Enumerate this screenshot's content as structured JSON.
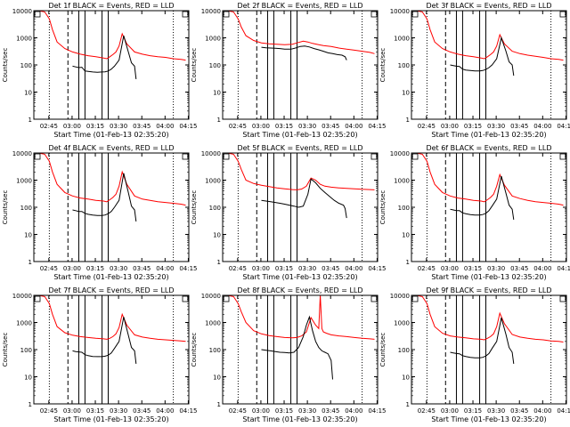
{
  "chart_data": {
    "type": "line",
    "y_scale": "log",
    "ylim": [
      1,
      10000
    ],
    "y_ticks": [
      1,
      10,
      100,
      1000,
      10000
    ],
    "y_tick_labels": [
      "1",
      "10",
      "100",
      "1000",
      "10000"
    ],
    "ylabel": "Counts/sec",
    "xlabel": "Start Time (01-Feb-13 02:35:20)",
    "x_units": "minutes after 02:35:20",
    "xlim": [
      0,
      100
    ],
    "x_ticks": [
      9.67,
      24.67,
      39.67,
      54.67,
      69.67,
      84.67,
      99.67
    ],
    "x_tick_labels": [
      "02:45",
      "03:00",
      "03:15",
      "03:30",
      "03:45",
      "04:00",
      "04:15"
    ],
    "legend": "BLACK = Events, RED = LLD",
    "colors": {
      "events": "#000000",
      "lld": "#ff0000"
    },
    "markers": {
      "dotted": [
        10,
        90
      ],
      "dashed": [
        22
      ],
      "solid": [
        29,
        33,
        44,
        48
      ]
    },
    "panels": [
      {
        "title": "Det 1f  BLACK = Events, RED = LLD",
        "series": [
          {
            "name": "LLD",
            "color": "red",
            "x": [
              0,
              3,
              7,
              10,
              12,
              15,
              20,
              25,
              30,
              35,
              40,
              45,
              47,
              49,
              51,
              53,
              55,
              57,
              60,
              65,
              70,
              75,
              80,
              85,
              90,
              95,
              98
            ],
            "y": [
              10000,
              10000,
              9000,
              5000,
              2000,
              700,
              400,
              300,
              250,
              220,
              200,
              180,
              170,
              200,
              240,
              300,
              500,
              1400,
              600,
              300,
              250,
              220,
              200,
              190,
              170,
              160,
              150
            ]
          },
          {
            "name": "Events",
            "color": "black",
            "x": [
              25,
              27,
              29,
              31,
              33,
              35,
              38,
              41,
              44,
              46,
              48,
              50,
              52,
              55,
              58,
              61,
              63,
              65,
              66
            ],
            "y": [
              90,
              85,
              80,
              82,
              60,
              58,
              55,
              54,
              55,
              56,
              60,
              70,
              90,
              150,
              1200,
              300,
              120,
              90,
              30
            ]
          }
        ]
      },
      {
        "title": "Det 2f  BLACK = Events, RED = LLD",
        "series": [
          {
            "name": "LLD",
            "color": "red",
            "x": [
              0,
              3,
              7,
              10,
              12,
              15,
              20,
              25,
              30,
              35,
              40,
              45,
              48,
              52,
              55,
              58,
              62,
              65,
              70,
              75,
              80,
              85,
              90,
              95,
              98
            ],
            "y": [
              10000,
              10000,
              9000,
              5000,
              2500,
              1200,
              800,
              650,
              600,
              580,
              560,
              580,
              650,
              750,
              700,
              620,
              560,
              520,
              480,
              420,
              380,
              350,
              320,
              290,
              260
            ]
          },
          {
            "name": "Events",
            "color": "black",
            "x": [
              25,
              28,
              31,
              34,
              37,
              40,
              44,
              47,
              50,
              53,
              56,
              59,
              62,
              65,
              68,
              71,
              74,
              77,
              79,
              80
            ],
            "y": [
              450,
              430,
              420,
              410,
              400,
              380,
              380,
              420,
              480,
              500,
              460,
              400,
              360,
              320,
              280,
              260,
              240,
              230,
              200,
              150
            ]
          }
        ]
      },
      {
        "title": "Det 3f  BLACK = Events, RED = LLD",
        "series": [
          {
            "name": "LLD",
            "color": "red",
            "x": [
              0,
              3,
              7,
              10,
              12,
              15,
              20,
              25,
              30,
              35,
              40,
              45,
              47,
              49,
              51,
              53,
              55,
              57,
              60,
              65,
              70,
              75,
              80,
              85,
              90,
              95,
              98
            ],
            "y": [
              10000,
              10000,
              9000,
              5000,
              2000,
              700,
              400,
              300,
              250,
              220,
              200,
              180,
              170,
              200,
              240,
              300,
              500,
              1300,
              600,
              320,
              260,
              230,
              210,
              190,
              170,
              160,
              150
            ]
          },
          {
            "name": "Events",
            "color": "black",
            "x": [
              25,
              27,
              29,
              31,
              33,
              35,
              38,
              41,
              44,
              46,
              48,
              50,
              52,
              55,
              58,
              61,
              63,
              65,
              66
            ],
            "y": [
              100,
              95,
              90,
              88,
              70,
              65,
              62,
              60,
              60,
              62,
              68,
              80,
              100,
              170,
              1000,
              320,
              130,
              100,
              40
            ]
          }
        ]
      },
      {
        "title": "Det 4f  BLACK = Events, RED = LLD",
        "series": [
          {
            "name": "LLD",
            "color": "red",
            "x": [
              0,
              3,
              7,
              10,
              12,
              15,
              20,
              25,
              30,
              35,
              40,
              45,
              47,
              49,
              51,
              53,
              55,
              57,
              60,
              65,
              70,
              75,
              80,
              85,
              90,
              95,
              98
            ],
            "y": [
              10000,
              10000,
              9000,
              5000,
              2000,
              700,
              350,
              260,
              220,
              200,
              180,
              170,
              160,
              190,
              230,
              300,
              600,
              2000,
              700,
              260,
              200,
              180,
              160,
              150,
              140,
              130,
              120
            ]
          },
          {
            "name": "Events",
            "color": "black",
            "x": [
              25,
              27,
              29,
              31,
              33,
              35,
              38,
              41,
              44,
              46,
              48,
              50,
              52,
              55,
              58,
              61,
              63,
              65,
              66
            ],
            "y": [
              80,
              75,
              70,
              70,
              60,
              55,
              52,
              50,
              50,
              52,
              58,
              70,
              100,
              180,
              1800,
              350,
              110,
              80,
              30
            ]
          }
        ]
      },
      {
        "title": "Det 5f  BLACK = Events, RED = LLD",
        "series": [
          {
            "name": "LLD",
            "color": "red",
            "x": [
              0,
              3,
              7,
              10,
              12,
              15,
              20,
              25,
              30,
              35,
              40,
              45,
              48,
              51,
              54,
              57,
              60,
              63,
              66,
              70,
              75,
              80,
              85,
              90,
              95,
              98
            ],
            "y": [
              10000,
              10000,
              9000,
              5000,
              2500,
              1000,
              750,
              650,
              580,
              520,
              480,
              450,
              440,
              470,
              600,
              1200,
              1000,
              700,
              600,
              550,
              520,
              500,
              480,
              460,
              450,
              440
            ]
          },
          {
            "name": "Events",
            "color": "black",
            "x": [
              25,
              28,
              31,
              34,
              37,
              40,
              43,
              46,
              49,
              52,
              55,
              57,
              60,
              63,
              66,
              69,
              72,
              75,
              78,
              79,
              80
            ],
            "y": [
              180,
              170,
              160,
              150,
              140,
              130,
              120,
              110,
              100,
              110,
              300,
              1100,
              800,
              500,
              350,
              250,
              180,
              140,
              120,
              90,
              40
            ]
          }
        ]
      },
      {
        "title": "Det 6f  BLACK = Events, RED = LLD",
        "series": [
          {
            "name": "LLD",
            "color": "red",
            "x": [
              0,
              3,
              7,
              10,
              12,
              15,
              20,
              25,
              30,
              35,
              40,
              45,
              47,
              49,
              51,
              53,
              55,
              57,
              60,
              65,
              70,
              75,
              80,
              85,
              90,
              95,
              98
            ],
            "y": [
              10000,
              10000,
              9000,
              5000,
              2000,
              700,
              350,
              260,
              220,
              200,
              180,
              170,
              160,
              190,
              230,
              300,
              600,
              1600,
              650,
              260,
              210,
              180,
              160,
              150,
              140,
              130,
              120
            ]
          },
          {
            "name": "Events",
            "color": "black",
            "x": [
              25,
              27,
              29,
              31,
              33,
              35,
              38,
              41,
              44,
              46,
              48,
              50,
              52,
              55,
              58,
              61,
              63,
              65,
              66
            ],
            "y": [
              85,
              80,
              75,
              75,
              62,
              58,
              54,
              52,
              52,
              54,
              60,
              75,
              110,
              200,
              1400,
              330,
              120,
              85,
              35
            ]
          }
        ]
      },
      {
        "title": "Det 7f  BLACK = Events, RED = LLD",
        "series": [
          {
            "name": "LLD",
            "color": "red",
            "x": [
              0,
              3,
              7,
              10,
              12,
              15,
              20,
              25,
              30,
              35,
              40,
              45,
              47,
              49,
              51,
              53,
              55,
              57,
              60,
              65,
              70,
              75,
              80,
              85,
              90,
              95,
              98
            ],
            "y": [
              10000,
              10000,
              9000,
              5000,
              2000,
              700,
              420,
              340,
              300,
              280,
              260,
              250,
              240,
              260,
              300,
              380,
              650,
              2000,
              800,
              350,
              290,
              260,
              240,
              230,
              220,
              210,
              200
            ]
          },
          {
            "name": "Events",
            "color": "black",
            "x": [
              25,
              27,
              29,
              31,
              33,
              35,
              38,
              41,
              44,
              46,
              48,
              50,
              52,
              55,
              58,
              61,
              63,
              65,
              66
            ],
            "y": [
              90,
              85,
              82,
              80,
              65,
              60,
              56,
              55,
              55,
              57,
              62,
              75,
              110,
              200,
              1600,
              340,
              120,
              90,
              30
            ]
          }
        ]
      },
      {
        "title": "Det 8f  BLACK = Events, RED = LLD",
        "series": [
          {
            "name": "LLD",
            "color": "red",
            "x": [
              0,
              3,
              7,
              10,
              12,
              15,
              20,
              25,
              30,
              35,
              40,
              45,
              48,
              51,
              54,
              57,
              60,
              62,
              63,
              64,
              65,
              67,
              70,
              75,
              80,
              85,
              90,
              95,
              98
            ],
            "y": [
              10000,
              10000,
              9000,
              5000,
              2500,
              1000,
              500,
              380,
              330,
              300,
              280,
              270,
              280,
              320,
              450,
              1500,
              800,
              600,
              10000,
              600,
              450,
              400,
              350,
              320,
              300,
              280,
              260,
              250,
              240
            ]
          },
          {
            "name": "Events",
            "color": "black",
            "x": [
              25,
              28,
              31,
              34,
              37,
              40,
              43,
              46,
              49,
              52,
              54,
              56,
              58,
              60,
              62,
              64,
              66,
              68,
              70,
              71
            ],
            "y": [
              100,
              95,
              90,
              85,
              80,
              78,
              75,
              80,
              120,
              300,
              800,
              1600,
              500,
              200,
              120,
              90,
              80,
              70,
              40,
              8
            ]
          }
        ]
      },
      {
        "title": "Det 9f  BLACK = Events, RED = LLD",
        "series": [
          {
            "name": "LLD",
            "color": "red",
            "x": [
              0,
              3,
              7,
              10,
              12,
              15,
              20,
              25,
              30,
              35,
              40,
              45,
              47,
              49,
              51,
              53,
              55,
              57,
              60,
              65,
              70,
              75,
              80,
              85,
              90,
              95,
              98
            ],
            "y": [
              10000,
              10000,
              9000,
              5000,
              2000,
              700,
              400,
              320,
              290,
              270,
              250,
              240,
              230,
              260,
              300,
              380,
              700,
              2200,
              900,
              360,
              290,
              260,
              240,
              230,
              210,
              200,
              190
            ]
          },
          {
            "name": "Events",
            "color": "black",
            "x": [
              25,
              27,
              29,
              31,
              33,
              35,
              38,
              41,
              44,
              46,
              48,
              50,
              52,
              55,
              58,
              61,
              63,
              65,
              66
            ],
            "y": [
              80,
              75,
              72,
              70,
              60,
              56,
              52,
              50,
              50,
              52,
              58,
              72,
              110,
              200,
              1500,
              360,
              120,
              80,
              30
            ]
          }
        ]
      }
    ]
  }
}
